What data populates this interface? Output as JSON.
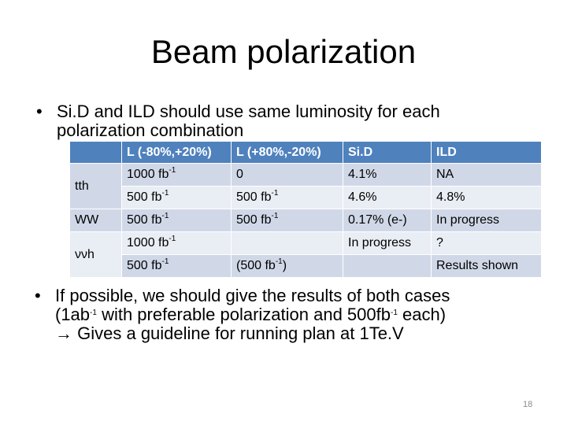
{
  "title": "Beam polarization",
  "bullets": [
    {
      "lines": [
        "Si.D and ILD should use same luminosity for each",
        "polarization combination"
      ]
    },
    {
      "line1": "If possible, we should give the results of both cases",
      "line2_a": "(1ab",
      "line2_sup1": "-1",
      "line2_b": " with preferable polarization and 500fb",
      "line2_sup2": "-1",
      "line2_c": " each)",
      "line3": "Gives a guideline for running plan at 1Te.V",
      "arrow_icon": "right-arrow"
    }
  ],
  "table": {
    "headers": [
      "",
      "L (-80%,+20%)",
      "L (+80%,-20%)",
      "Si.D",
      "ILD"
    ],
    "unit": "fb",
    "unit_exp": "-1",
    "rows": {
      "tth_label": "tth",
      "tth1": [
        "1000",
        "0",
        "4.1%",
        "NA"
      ],
      "tth2": [
        "500",
        "500",
        "4.6%",
        "4.8%"
      ],
      "ww_label": "WW",
      "ww": [
        "500",
        "500",
        "0.17% (e-)",
        "In progress"
      ],
      "nnh_label": "ννh",
      "nnh1": [
        "1000",
        "",
        "In progress",
        "?"
      ],
      "nnh2": [
        "500",
        "(500",
        "",
        "Results shown"
      ]
    }
  },
  "page_number": "18",
  "colors": {
    "header": "#4f81bd",
    "row_dark": "#d0d8e8",
    "row_light": "#e9edf4"
  }
}
